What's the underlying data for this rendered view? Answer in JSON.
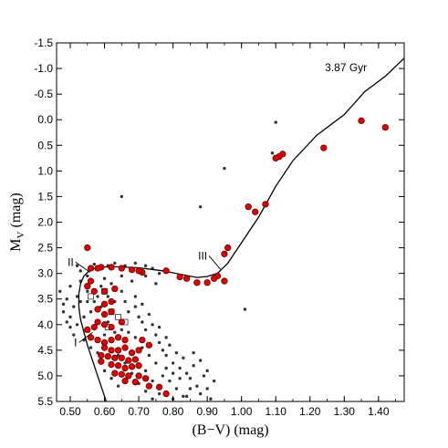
{
  "chart_data": {
    "type": "scatter",
    "xlabel": "(B−V) (mag)",
    "ylabel_main": "M",
    "ylabel_sub": "V",
    "ylabel_unit": " (mag)",
    "xlim": [
      0.46,
      1.475
    ],
    "ylim": [
      5.5,
      -1.5
    ],
    "y_inverted": true,
    "grid": false,
    "xticks": [
      0.5,
      0.6,
      0.7,
      0.8,
      0.9,
      1.0,
      1.1,
      1.2,
      1.3,
      1.4
    ],
    "xtick_labels": [
      "0.50",
      "0.60",
      "0.70",
      "0.80",
      "0.90",
      "1.00",
      "1.10",
      "1.20",
      "1.30",
      "1.40"
    ],
    "yticks": [
      -1.5,
      -1.0,
      -0.5,
      0.0,
      0.5,
      1.0,
      1.5,
      2.0,
      2.5,
      3.0,
      3.5,
      4.0,
      4.5,
      5.0,
      5.5
    ],
    "ytick_labels": [
      "-1.5",
      "-1.0",
      "-0.5",
      "0.0",
      "0.5",
      "1.0",
      "1.5",
      "2.0",
      "2.5",
      "3.0",
      "3.5",
      "4.0",
      "4.5",
      "5.0",
      "5.5"
    ],
    "isochrone_label": "3.87 Gyr",
    "annotations": [
      {
        "text": "I",
        "x": 0.52,
        "y": 4.35,
        "arrow_to": [
          0.565,
          4.15
        ]
      },
      {
        "text": "II",
        "x": 0.51,
        "y": 2.78,
        "arrow_to": [
          0.558,
          2.98
        ]
      },
      {
        "text": "III",
        "x": 0.9,
        "y": 2.66,
        "arrow_to": [
          0.94,
          2.93
        ]
      }
    ],
    "colors": {
      "member": "#dd0000",
      "member_edge": "#5a0000",
      "field": "#333333",
      "line": "#000000",
      "square": "#ffffff"
    },
    "isochrone": [
      [
        0.605,
        5.5
      ],
      [
        0.595,
        5.3
      ],
      [
        0.58,
        5.0
      ],
      [
        0.565,
        4.7
      ],
      [
        0.55,
        4.4
      ],
      [
        0.54,
        4.15
      ],
      [
        0.53,
        3.9
      ],
      [
        0.525,
        3.65
      ],
      [
        0.525,
        3.4
      ],
      [
        0.53,
        3.2
      ],
      [
        0.54,
        3.05
      ],
      [
        0.555,
        2.95
      ],
      [
        0.58,
        2.88
      ],
      [
        0.63,
        2.87
      ],
      [
        0.7,
        2.89
      ],
      [
        0.77,
        2.95
      ],
      [
        0.83,
        3.03
      ],
      [
        0.87,
        3.08
      ],
      [
        0.9,
        3.06
      ],
      [
        0.93,
        3.0
      ],
      [
        0.96,
        2.8
      ],
      [
        1.0,
        2.4
      ],
      [
        1.05,
        1.9
      ],
      [
        1.1,
        1.3
      ],
      [
        1.15,
        0.8
      ],
      [
        1.22,
        0.3
      ],
      [
        1.3,
        -0.1
      ],
      [
        1.36,
        -0.55
      ],
      [
        1.42,
        -0.85
      ],
      [
        1.475,
        -1.2
      ]
    ],
    "members": [
      [
        1.42,
        0.15
      ],
      [
        1.35,
        0.02
      ],
      [
        1.24,
        0.55
      ],
      [
        1.12,
        0.67
      ],
      [
        1.11,
        0.72
      ],
      [
        1.1,
        0.75
      ],
      [
        1.07,
        1.65
      ],
      [
        1.04,
        1.8
      ],
      [
        1.02,
        1.7
      ],
      [
        0.96,
        2.5
      ],
      [
        0.95,
        2.62
      ],
      [
        0.93,
        3.05
      ],
      [
        0.92,
        3.1
      ],
      [
        0.95,
        3.15
      ],
      [
        0.9,
        3.18
      ],
      [
        0.87,
        3.18
      ],
      [
        0.84,
        3.1
      ],
      [
        0.82,
        3.07
      ],
      [
        0.78,
        2.95
      ],
      [
        0.71,
        2.98
      ],
      [
        0.7,
        2.95
      ],
      [
        0.68,
        2.93
      ],
      [
        0.65,
        2.9
      ],
      [
        0.62,
        2.88
      ],
      [
        0.59,
        2.88
      ],
      [
        0.58,
        2.9
      ],
      [
        0.56,
        2.9
      ],
      [
        0.55,
        2.5
      ],
      [
        0.56,
        3.15
      ],
      [
        0.55,
        3.25
      ],
      [
        0.57,
        3.35
      ],
      [
        0.6,
        3.35
      ],
      [
        0.63,
        3.3
      ],
      [
        0.62,
        3.55
      ],
      [
        0.6,
        3.6
      ],
      [
        0.58,
        3.7
      ],
      [
        0.6,
        3.8
      ],
      [
        0.62,
        3.75
      ],
      [
        0.58,
        3.95
      ],
      [
        0.6,
        4.0
      ],
      [
        0.62,
        4.05
      ],
      [
        0.65,
        3.95
      ],
      [
        0.57,
        4.05
      ],
      [
        0.55,
        4.1
      ],
      [
        0.56,
        4.25
      ],
      [
        0.58,
        4.3
      ],
      [
        0.6,
        4.35
      ],
      [
        0.62,
        4.3
      ],
      [
        0.64,
        4.25
      ],
      [
        0.66,
        4.3
      ],
      [
        0.6,
        4.45
      ],
      [
        0.62,
        4.5
      ],
      [
        0.64,
        4.5
      ],
      [
        0.66,
        4.45
      ],
      [
        0.68,
        4.55
      ],
      [
        0.7,
        4.5
      ],
      [
        0.59,
        4.6
      ],
      [
        0.61,
        4.62
      ],
      [
        0.63,
        4.65
      ],
      [
        0.65,
        4.65
      ],
      [
        0.67,
        4.7
      ],
      [
        0.69,
        4.68
      ],
      [
        0.62,
        4.78
      ],
      [
        0.64,
        4.8
      ],
      [
        0.66,
        4.85
      ],
      [
        0.68,
        4.82
      ],
      [
        0.7,
        4.8
      ],
      [
        0.63,
        4.95
      ],
      [
        0.65,
        4.97
      ],
      [
        0.67,
        5.0
      ],
      [
        0.7,
        5.0
      ],
      [
        0.72,
        5.05
      ],
      [
        0.66,
        5.1
      ],
      [
        0.69,
        5.12
      ],
      [
        0.73,
        5.2
      ],
      [
        0.76,
        5.22
      ],
      [
        0.78,
        5.35
      ],
      [
        0.59,
        4.72
      ],
      [
        0.71,
        4.3
      ],
      [
        0.73,
        4.4
      ]
    ],
    "squares": [
      [
        0.6,
        3.35
      ],
      [
        0.56,
        3.45
      ],
      [
        0.62,
        3.75
      ],
      [
        0.64,
        3.85
      ],
      [
        0.66,
        3.95
      ],
      [
        0.61,
        4.05
      ]
    ],
    "field": [
      [
        1.1,
        0.05
      ],
      [
        0.95,
        0.95
      ],
      [
        0.65,
        1.5
      ],
      [
        0.88,
        1.7
      ],
      [
        1.01,
        3.7
      ],
      [
        1.09,
        0.65
      ],
      [
        0.47,
        3.35
      ],
      [
        0.49,
        3.5
      ],
      [
        0.48,
        3.75
      ],
      [
        0.49,
        3.95
      ],
      [
        0.5,
        4.05
      ],
      [
        0.52,
        3.45
      ],
      [
        0.51,
        3.65
      ],
      [
        0.53,
        3.55
      ],
      [
        0.54,
        3.85
      ],
      [
        0.52,
        4.0
      ],
      [
        0.5,
        3.25
      ],
      [
        0.53,
        3.15
      ],
      [
        0.55,
        3.35
      ],
      [
        0.55,
        3.55
      ],
      [
        0.56,
        3.75
      ],
      [
        0.57,
        3.55
      ],
      [
        0.58,
        3.45
      ],
      [
        0.59,
        3.65
      ],
      [
        0.61,
        3.45
      ],
      [
        0.63,
        3.55
      ],
      [
        0.65,
        3.35
      ],
      [
        0.66,
        3.55
      ],
      [
        0.67,
        3.75
      ],
      [
        0.69,
        3.65
      ],
      [
        0.7,
        3.85
      ],
      [
        0.71,
        3.95
      ],
      [
        0.72,
        4.1
      ],
      [
        0.74,
        4.0
      ],
      [
        0.75,
        4.2
      ],
      [
        0.76,
        4.35
      ],
      [
        0.77,
        4.5
      ],
      [
        0.78,
        4.6
      ],
      [
        0.79,
        4.4
      ],
      [
        0.8,
        4.75
      ],
      [
        0.81,
        4.55
      ],
      [
        0.82,
        4.85
      ],
      [
        0.83,
        4.65
      ],
      [
        0.84,
        4.95
      ],
      [
        0.85,
        5.05
      ],
      [
        0.86,
        4.8
      ],
      [
        0.87,
        5.2
      ],
      [
        0.88,
        5.35
      ],
      [
        0.89,
        5.0
      ],
      [
        0.9,
        5.25
      ],
      [
        0.91,
        5.45
      ],
      [
        0.84,
        5.4
      ],
      [
        0.8,
        5.45
      ],
      [
        0.76,
        5.35
      ],
      [
        0.74,
        5.1
      ],
      [
        0.72,
        4.9
      ],
      [
        0.75,
        4.75
      ],
      [
        0.73,
        4.6
      ],
      [
        0.71,
        4.45
      ],
      [
        0.69,
        4.25
      ],
      [
        0.67,
        4.15
      ],
      [
        0.65,
        4.1
      ],
      [
        0.64,
        4.6
      ],
      [
        0.66,
        4.75
      ],
      [
        0.68,
        4.95
      ],
      [
        0.7,
        5.15
      ],
      [
        0.72,
        5.3
      ],
      [
        0.74,
        5.45
      ],
      [
        0.6,
        4.9
      ],
      [
        0.62,
        5.05
      ],
      [
        0.64,
        5.2
      ],
      [
        0.58,
        4.55
      ],
      [
        0.56,
        4.45
      ],
      [
        0.54,
        4.3
      ],
      [
        0.79,
        5.1
      ],
      [
        0.81,
        5.25
      ],
      [
        0.83,
        5.4
      ],
      [
        0.77,
        5.0
      ],
      [
        0.78,
        4.85
      ],
      [
        0.6,
        3.1
      ],
      [
        0.62,
        3.2
      ],
      [
        0.65,
        3.05
      ],
      [
        0.68,
        3.15
      ],
      [
        0.72,
        3.05
      ],
      [
        0.75,
        3.2
      ],
      [
        0.66,
        2.85
      ],
      [
        0.69,
        2.8
      ],
      [
        0.72,
        2.85
      ],
      [
        0.74,
        2.9
      ],
      [
        0.76,
        3.0
      ],
      [
        0.52,
        2.85
      ],
      [
        0.53,
        2.95
      ],
      [
        0.61,
        2.85
      ],
      [
        0.63,
        2.8
      ],
      [
        0.57,
        2.82
      ],
      [
        0.55,
        3.05
      ],
      [
        0.59,
        3.25
      ],
      [
        0.61,
        3.95
      ],
      [
        0.63,
        4.15
      ],
      [
        0.6,
        4.2
      ],
      [
        0.86,
        4.55
      ],
      [
        0.88,
        4.7
      ],
      [
        0.9,
        4.9
      ],
      [
        0.92,
        5.1
      ],
      [
        0.85,
        5.25
      ],
      [
        0.82,
        5.05
      ],
      [
        0.8,
        4.95
      ],
      [
        0.78,
        4.25
      ],
      [
        0.76,
        4.05
      ],
      [
        0.73,
        3.8
      ],
      [
        0.69,
        3.45
      ],
      [
        0.71,
        3.6
      ],
      [
        0.48,
        3.6
      ],
      [
        0.5,
        3.85
      ],
      [
        0.51,
        4.2
      ]
    ]
  }
}
